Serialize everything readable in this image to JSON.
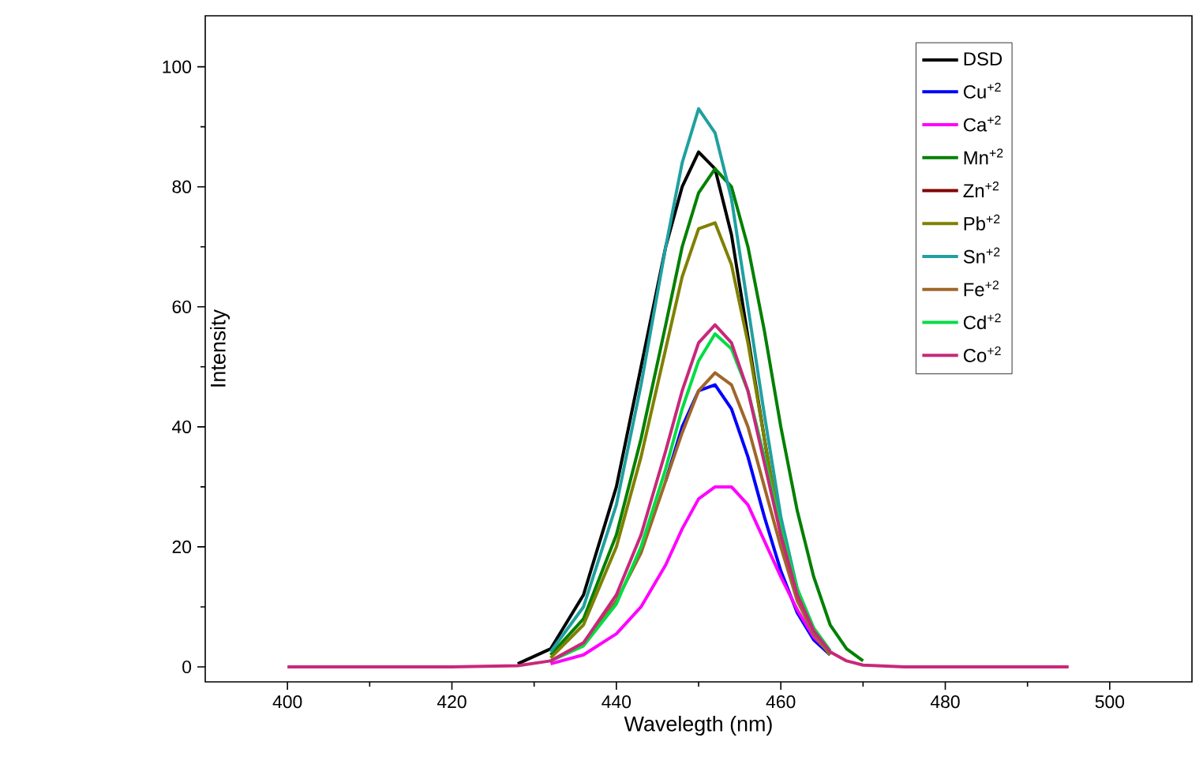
{
  "chart_data": {
    "type": "line",
    "xlabel": "Wavelegth (nm)",
    "ylabel": "Intensity",
    "x": [
      400,
      410,
      420,
      428,
      432,
      436,
      440,
      443,
      446,
      448,
      450,
      452,
      454,
      456,
      458,
      460,
      462,
      464,
      466,
      468,
      470,
      475,
      480,
      490,
      495
    ],
    "series": [
      {
        "name": "DSD",
        "color": "#000000",
        "values": [
          null,
          null,
          null,
          0.5,
          3,
          12,
          30,
          50,
          70,
          80,
          85.8,
          83,
          72,
          55,
          38,
          22,
          12,
          6,
          2.5,
          null,
          null,
          null,
          null,
          null,
          null
        ]
      },
      {
        "name": "Cu$^{+2}$",
        "color": "#0000ff",
        "values": [
          null,
          null,
          null,
          null,
          null,
          null,
          null,
          null,
          31,
          40,
          46,
          47,
          43,
          35,
          25,
          16,
          9,
          4.5,
          2,
          null,
          null,
          null,
          null,
          null,
          null
        ]
      },
      {
        "name": "Ca$^{+2}$",
        "color": "#ff00ff",
        "values": [
          null,
          null,
          null,
          null,
          0.5,
          2,
          5.5,
          10,
          17,
          23,
          28,
          30,
          30,
          27,
          21,
          15,
          9.5,
          5,
          2.3,
          null,
          null,
          null,
          null,
          null,
          null
        ]
      },
      {
        "name": "Mn$^{+2}$",
        "color": "#008000",
        "values": [
          null,
          null,
          null,
          null,
          2,
          8,
          22,
          38,
          57,
          70,
          79,
          83,
          80,
          70,
          56,
          40,
          26,
          15,
          7,
          3,
          1,
          null,
          null,
          null,
          null
        ]
      },
      {
        "name": "Zn$^{+2}$",
        "color": "#800000",
        "values": [
          null,
          null,
          null,
          null,
          null,
          null,
          null,
          null,
          null,
          null,
          null,
          null,
          null,
          null,
          null,
          null,
          null,
          null,
          null,
          null,
          null,
          null,
          null,
          null,
          null
        ]
      },
      {
        "name": "Pb$^{+2}$",
        "color": "#808000",
        "values": [
          null,
          null,
          null,
          null,
          1.5,
          7,
          20,
          35,
          53,
          65,
          73,
          74,
          67,
          54,
          38,
          23,
          12,
          5.5,
          2,
          null,
          null,
          null,
          null,
          null,
          null
        ]
      },
      {
        "name": "Sn$^{+2}$",
        "color": "#20a0a0",
        "values": [
          null,
          null,
          null,
          null,
          2.5,
          10,
          27,
          47,
          70,
          84,
          93,
          89,
          78,
          60,
          42,
          25,
          13,
          6,
          2.5,
          null,
          null,
          null,
          null,
          null,
          null
        ]
      },
      {
        "name": "Fe$^{+2}$",
        "color": "#a0662a",
        "values": [
          null,
          null,
          null,
          null,
          1,
          4,
          11,
          19,
          31,
          39,
          46,
          49,
          47,
          40,
          30,
          20,
          11,
          5.5,
          2.3,
          null,
          null,
          null,
          null,
          null,
          null
        ]
      },
      {
        "name": "Cd$^{+2}$",
        "color": "#00dd44",
        "values": [
          null,
          null,
          null,
          null,
          1,
          3.5,
          10.5,
          20,
          33,
          43,
          51,
          55.5,
          53,
          46,
          35,
          23,
          13,
          6.5,
          2.7,
          null,
          null,
          null,
          null,
          null,
          null
        ]
      },
      {
        "name": "Co$^{+2}$",
        "color": "#c8287a",
        "values": [
          0,
          0,
          0,
          0.2,
          1,
          4,
          12,
          22,
          36,
          46,
          54,
          57,
          54,
          46,
          34,
          22,
          12,
          6,
          2.5,
          1,
          0.3,
          0,
          0,
          0,
          0
        ]
      }
    ],
    "xlim": [
      390,
      510
    ],
    "ylim": [
      -2.5,
      108.5
    ],
    "xticks": [
      400,
      420,
      440,
      460,
      480,
      500
    ],
    "yticks": [
      0,
      20,
      40,
      60,
      80,
      100
    ],
    "legend": "top right",
    "grid": false,
    "marker": "none",
    "line_style": "solid"
  }
}
